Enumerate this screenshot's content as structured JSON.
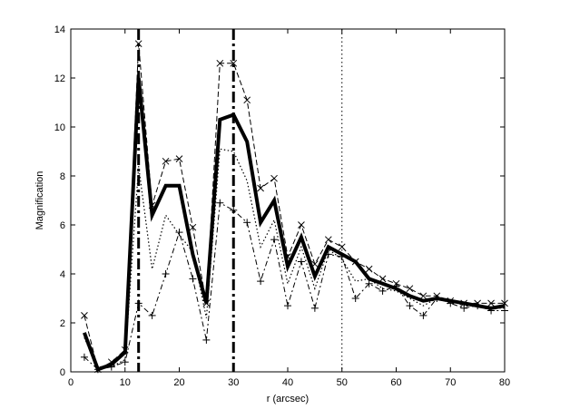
{
  "chart_data": {
    "type": "line",
    "title": "",
    "xlabel": "r (arcsec)",
    "ylabel": "Magnification",
    "xlim": [
      0,
      80
    ],
    "ylim": [
      0,
      14
    ],
    "xticks": [
      0,
      10,
      20,
      30,
      40,
      50,
      60,
      70,
      80
    ],
    "yticks": [
      0,
      2,
      4,
      6,
      8,
      10,
      12,
      14
    ],
    "grid": false,
    "legend": "none",
    "x": [
      2.5,
      5,
      7.5,
      10,
      12.5,
      15,
      17.5,
      20,
      22.5,
      25,
      27.5,
      30,
      32.5,
      35,
      37.5,
      40,
      42.5,
      45,
      47.5,
      50,
      52.5,
      55,
      57.5,
      60,
      62.5,
      65,
      67.5,
      70,
      72.5,
      75,
      77.5,
      80
    ],
    "vertical_lines": [
      {
        "x": 12.5,
        "style": "dashdot-thick"
      },
      {
        "x": 30,
        "style": "dashdot-thick"
      },
      {
        "x": 50,
        "style": "dotted"
      }
    ],
    "series": [
      {
        "style": "thick-solid",
        "values": [
          1.6,
          0.1,
          0.3,
          0.8,
          12.0,
          6.4,
          7.6,
          7.6,
          4.8,
          2.8,
          10.3,
          10.5,
          9.4,
          6.1,
          7.0,
          4.3,
          5.5,
          3.9,
          5.1,
          4.8,
          4.5,
          3.8,
          3.6,
          3.4,
          3.1,
          2.9,
          3.0,
          2.9,
          2.8,
          2.7,
          2.6,
          2.7
        ]
      },
      {
        "style": "dashed-x-markers",
        "marker": "x",
        "values": [
          2.3,
          0.1,
          0.4,
          0.9,
          13.4,
          6.8,
          8.6,
          8.7,
          5.9,
          2.8,
          12.6,
          12.6,
          11.1,
          7.5,
          7.9,
          4.7,
          6.0,
          4.4,
          5.4,
          5.1,
          4.5,
          4.2,
          3.8,
          3.6,
          3.4,
          3.1,
          3.1,
          2.9,
          2.8,
          2.8,
          2.8,
          2.8
        ]
      },
      {
        "style": "dashdot-plus-markers",
        "marker": "+",
        "values": [
          0.6,
          0.1,
          0.2,
          0.4,
          2.8,
          2.3,
          4.0,
          5.7,
          3.8,
          1.3,
          6.9,
          6.6,
          6.1,
          3.7,
          5.4,
          2.7,
          4.5,
          2.6,
          4.8,
          4.7,
          3.0,
          3.6,
          3.3,
          3.5,
          2.7,
          2.3,
          3.0,
          2.8,
          2.6,
          2.7,
          2.5,
          2.5
        ]
      },
      {
        "style": "dotted",
        "values": [
          1.4,
          0.1,
          0.2,
          0.5,
          8.4,
          4.2,
          6.4,
          5.6,
          4.9,
          2.2,
          9.1,
          9.0,
          7.8,
          5.1,
          6.2,
          3.6,
          5.1,
          3.4,
          5.0,
          4.6,
          3.7,
          3.8,
          3.4,
          3.3,
          3.0,
          2.7,
          3.0,
          2.9,
          2.7,
          2.7,
          2.6,
          2.6
        ]
      }
    ]
  }
}
